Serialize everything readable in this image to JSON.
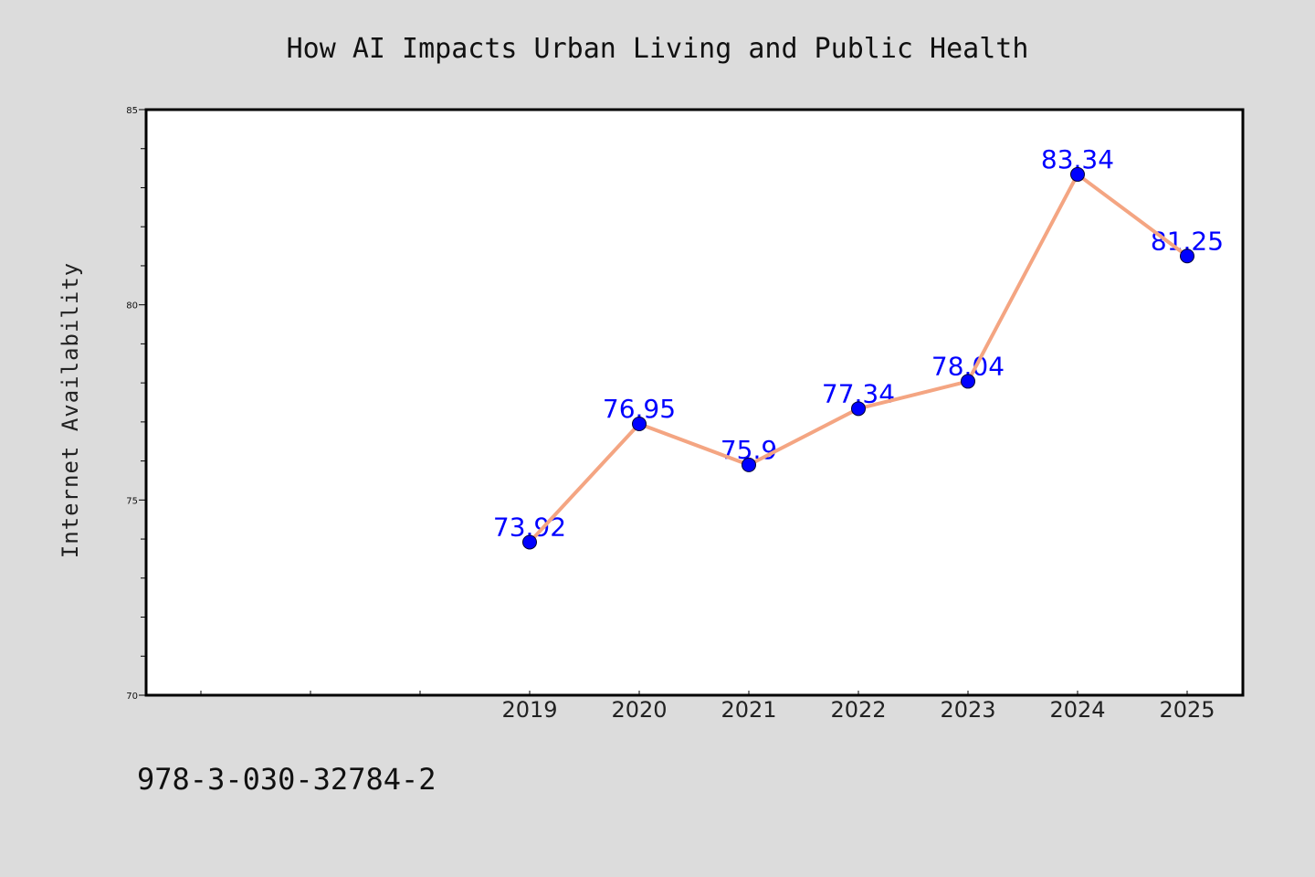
{
  "chart_data": {
    "type": "line",
    "title": "How AI Impacts Urban Living and Public Health",
    "xlabel": "",
    "ylabel": "Internet Availability",
    "x": [
      "2019",
      "2020",
      "2021",
      "2022",
      "2023",
      "2024",
      "2025"
    ],
    "series": [
      {
        "values": [
          73.92,
          76.95,
          75.9,
          77.34,
          78.04,
          83.34,
          81.25
        ],
        "labels": [
          "73.92",
          "76.95",
          "75.9",
          "77.34",
          "78.04",
          "83.34",
          "81.25"
        ]
      }
    ],
    "ylim": [
      70,
      85
    ],
    "yticks": [
      "70",
      "75",
      "80",
      "85"
    ],
    "grid": false,
    "legend": "none",
    "colors": {
      "background": "#dcdcdc",
      "plot_area": "#ffffff",
      "line": "#f4a582",
      "marker": "#0000ff",
      "data_label": "#0000ff"
    }
  },
  "footer": {
    "isbn": "978-3-030-32784-2"
  }
}
